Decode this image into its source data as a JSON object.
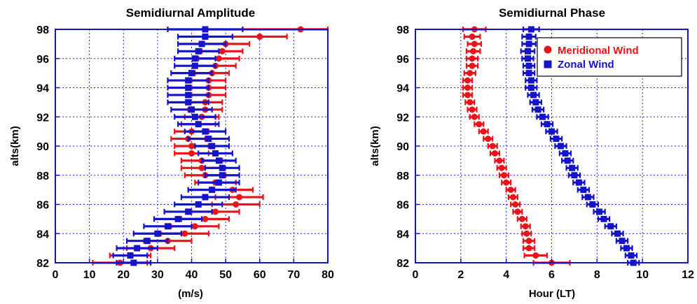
{
  "chart_data": [
    {
      "type": "scatter",
      "title": "Semidiurnal Amplitude",
      "xlabel": "(m/s)",
      "ylabel": "alts(km)",
      "xlim": [
        0,
        80
      ],
      "ylim": [
        82,
        98
      ],
      "xticks": [
        "0",
        "10",
        "20",
        "30",
        "40",
        "50",
        "60",
        "70",
        "80"
      ],
      "yticks": [
        "82",
        "84",
        "86",
        "88",
        "90",
        "92",
        "94",
        "96",
        "98"
      ],
      "grid": true,
      "series": [
        {
          "key": "meridional",
          "color": "#e8141a",
          "marker": "circle",
          "points": [
            [
              82.0,
              19.0,
              8.0
            ],
            [
              82.5,
              22.0,
              6.0
            ],
            [
              83.0,
              28.0,
              7.0
            ],
            [
              83.5,
              33.0,
              7.0
            ],
            [
              84.0,
              38.0,
              7.0
            ],
            [
              84.5,
              41.0,
              7.0
            ],
            [
              85.0,
              44.0,
              7.0
            ],
            [
              85.5,
              47.0,
              7.0
            ],
            [
              86.0,
              53.0,
              7.0
            ],
            [
              86.5,
              54.0,
              7.0
            ],
            [
              87.0,
              52.0,
              6.0
            ],
            [
              87.5,
              47.0,
              6.0
            ],
            [
              88.0,
              44.0,
              6.0
            ],
            [
              88.5,
              43.0,
              6.0
            ],
            [
              89.0,
              43.0,
              6.0
            ],
            [
              89.5,
              40.0,
              5.0
            ],
            [
              90.0,
              40.0,
              5.0
            ],
            [
              90.5,
              39.0,
              5.0
            ],
            [
              91.0,
              40.0,
              5.0
            ],
            [
              91.5,
              42.0,
              5.0
            ],
            [
              92.0,
              43.0,
              5.0
            ],
            [
              92.5,
              44.0,
              5.0
            ],
            [
              93.0,
              44.0,
              5.0
            ],
            [
              93.5,
              45.0,
              5.0
            ],
            [
              94.0,
              45.0,
              5.0
            ],
            [
              94.5,
              45.0,
              5.0
            ],
            [
              95.0,
              46.0,
              5.0
            ],
            [
              95.5,
              47.0,
              6.0
            ],
            [
              96.0,
              48.0,
              6.0
            ],
            [
              96.5,
              49.0,
              6.0
            ],
            [
              97.0,
              50.0,
              7.0
            ],
            [
              97.5,
              60.0,
              8.0
            ],
            [
              98.0,
              72.0,
              17.0
            ]
          ]
        },
        {
          "key": "zonal",
          "color": "#1414c8",
          "marker": "square",
          "points": [
            [
              82.0,
              23.0,
              5.0
            ],
            [
              82.5,
              22.0,
              5.0
            ],
            [
              83.0,
              24.0,
              6.0
            ],
            [
              83.5,
              27.0,
              6.0
            ],
            [
              84.0,
              30.0,
              7.0
            ],
            [
              84.5,
              33.0,
              7.0
            ],
            [
              85.0,
              36.0,
              7.0
            ],
            [
              85.5,
              39.0,
              7.0
            ],
            [
              86.0,
              42.0,
              7.0
            ],
            [
              86.5,
              44.0,
              7.0
            ],
            [
              87.0,
              46.0,
              7.0
            ],
            [
              87.5,
              48.0,
              6.0
            ],
            [
              88.0,
              49.0,
              5.0
            ],
            [
              88.5,
              49.0,
              5.0
            ],
            [
              89.0,
              48.0,
              5.0
            ],
            [
              89.5,
              47.0,
              5.0
            ],
            [
              90.0,
              46.0,
              5.0
            ],
            [
              90.5,
              45.0,
              6.0
            ],
            [
              91.0,
              44.0,
              6.0
            ],
            [
              91.5,
              42.0,
              6.0
            ],
            [
              92.0,
              41.0,
              6.0
            ],
            [
              92.5,
              40.0,
              6.0
            ],
            [
              93.0,
              39.0,
              6.0
            ],
            [
              93.5,
              39.0,
              6.0
            ],
            [
              94.0,
              39.0,
              6.0
            ],
            [
              94.5,
              39.0,
              6.0
            ],
            [
              95.0,
              40.0,
              6.0
            ],
            [
              95.5,
              41.0,
              6.0
            ],
            [
              96.0,
              41.0,
              6.0
            ],
            [
              96.5,
              42.0,
              6.0
            ],
            [
              97.0,
              43.0,
              7.0
            ],
            [
              97.5,
              44.0,
              8.0
            ],
            [
              98.0,
              44.0,
              11.0
            ]
          ]
        }
      ]
    },
    {
      "type": "scatter",
      "title": "Semidiurnal Phase",
      "xlabel": "Hour (LT)",
      "ylabel": "alts(km)",
      "xlim": [
        0,
        12
      ],
      "ylim": [
        82,
        98
      ],
      "xticks": [
        "0",
        "2",
        "4",
        "6",
        "8",
        "10",
        "12"
      ],
      "yticks": [
        "82",
        "84",
        "86",
        "88",
        "90",
        "92",
        "94",
        "96",
        "98"
      ],
      "grid": true,
      "legend": {
        "position": "top-right",
        "entries": [
          {
            "label": "Meridional Wind",
            "color": "#e8141a",
            "marker": "circle"
          },
          {
            "label": "Zonal Wind",
            "color": "#1414c8",
            "marker": "square"
          }
        ]
      },
      "series": [
        {
          "key": "meridional",
          "color": "#e8141a",
          "marker": "circle",
          "points": [
            [
              82.0,
              6.0,
              0.8
            ],
            [
              82.5,
              5.3,
              0.5
            ],
            [
              83.0,
              5.0,
              0.25
            ],
            [
              83.5,
              5.0,
              0.25
            ],
            [
              84.0,
              4.9,
              0.2
            ],
            [
              84.5,
              4.85,
              0.2
            ],
            [
              85.0,
              4.7,
              0.2
            ],
            [
              85.5,
              4.5,
              0.2
            ],
            [
              86.0,
              4.4,
              0.2
            ],
            [
              86.5,
              4.3,
              0.2
            ],
            [
              87.0,
              4.2,
              0.2
            ],
            [
              87.5,
              4.0,
              0.2
            ],
            [
              88.0,
              3.9,
              0.2
            ],
            [
              88.5,
              3.8,
              0.2
            ],
            [
              89.0,
              3.7,
              0.2
            ],
            [
              89.5,
              3.5,
              0.2
            ],
            [
              90.0,
              3.4,
              0.2
            ],
            [
              90.5,
              3.2,
              0.2
            ],
            [
              91.0,
              3.0,
              0.2
            ],
            [
              91.5,
              2.8,
              0.2
            ],
            [
              92.0,
              2.6,
              0.2
            ],
            [
              92.5,
              2.5,
              0.2
            ],
            [
              93.0,
              2.4,
              0.2
            ],
            [
              93.5,
              2.3,
              0.2
            ],
            [
              94.0,
              2.3,
              0.2
            ],
            [
              94.5,
              2.3,
              0.2
            ],
            [
              95.0,
              2.4,
              0.25
            ],
            [
              95.5,
              2.5,
              0.25
            ],
            [
              96.0,
              2.5,
              0.25
            ],
            [
              96.5,
              2.55,
              0.3
            ],
            [
              97.0,
              2.6,
              0.3
            ],
            [
              97.5,
              2.5,
              0.35
            ],
            [
              98.0,
              2.6,
              0.5
            ]
          ]
        },
        {
          "key": "zonal",
          "color": "#1414c8",
          "marker": "square",
          "points": [
            [
              82.0,
              9.6,
              0.25
            ],
            [
              82.5,
              9.5,
              0.25
            ],
            [
              83.0,
              9.3,
              0.25
            ],
            [
              83.5,
              9.1,
              0.25
            ],
            [
              84.0,
              8.9,
              0.25
            ],
            [
              84.5,
              8.6,
              0.25
            ],
            [
              85.0,
              8.3,
              0.25
            ],
            [
              85.5,
              8.1,
              0.25
            ],
            [
              86.0,
              7.8,
              0.25
            ],
            [
              86.5,
              7.6,
              0.25
            ],
            [
              87.0,
              7.4,
              0.25
            ],
            [
              87.5,
              7.2,
              0.25
            ],
            [
              88.0,
              7.0,
              0.25
            ],
            [
              88.5,
              6.9,
              0.25
            ],
            [
              89.0,
              6.7,
              0.25
            ],
            [
              89.5,
              6.6,
              0.25
            ],
            [
              90.0,
              6.4,
              0.25
            ],
            [
              90.5,
              6.2,
              0.25
            ],
            [
              91.0,
              6.0,
              0.25
            ],
            [
              91.5,
              5.8,
              0.25
            ],
            [
              92.0,
              5.6,
              0.25
            ],
            [
              92.5,
              5.4,
              0.25
            ],
            [
              93.0,
              5.3,
              0.25
            ],
            [
              93.5,
              5.2,
              0.25
            ],
            [
              94.0,
              5.1,
              0.25
            ],
            [
              94.5,
              5.1,
              0.25
            ],
            [
              95.0,
              5.0,
              0.25
            ],
            [
              95.5,
              5.0,
              0.25
            ],
            [
              96.0,
              4.95,
              0.25
            ],
            [
              96.5,
              4.95,
              0.3
            ],
            [
              97.0,
              5.0,
              0.3
            ],
            [
              97.5,
              5.0,
              0.3
            ],
            [
              98.0,
              5.1,
              0.35
            ]
          ]
        }
      ]
    }
  ]
}
